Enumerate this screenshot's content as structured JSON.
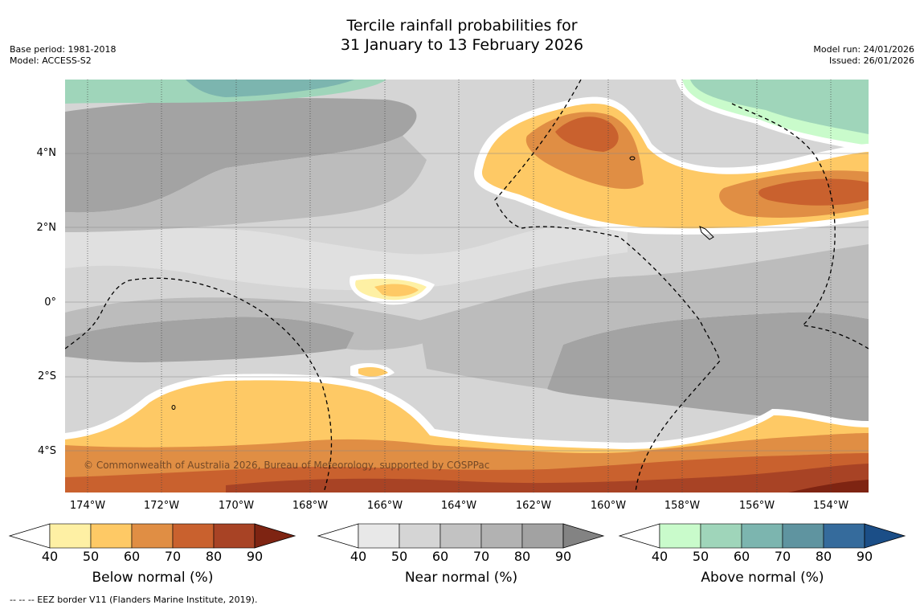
{
  "title": {
    "line1": "Tercile rainfall probabilities for",
    "line2": "31 January to 13 February 2026"
  },
  "meta": {
    "base_period": "Base period: 1981-2018",
    "model": "Model: ACCESS-S2",
    "model_run": "Model run: 24/01/2026",
    "issued": "Issued: 26/01/2026"
  },
  "axes": {
    "lat_labels": [
      "4°N",
      "2°N",
      "0°",
      "2°S",
      "4°S"
    ],
    "lon_labels": [
      "174°W",
      "172°W",
      "170°W",
      "168°W",
      "166°W",
      "164°W",
      "162°W",
      "160°W",
      "158°W",
      "156°W",
      "154°W"
    ]
  },
  "copyright": "© Commonwealth of Australia 2026, Bureau of Meteorology, supported by COSPPac",
  "colorbars": [
    {
      "title": "Below normal (%)",
      "ticks": [
        "40",
        "50",
        "60",
        "70",
        "80",
        "90"
      ],
      "colors": [
        "#fef0a4",
        "#fec965",
        "#e08e44",
        "#c9612e",
        "#a84325",
        "#7e2412"
      ]
    },
    {
      "title": "Near normal (%)",
      "ticks": [
        "40",
        "50",
        "60",
        "70",
        "80",
        "90"
      ],
      "colors": [
        "#e8e8e8",
        "#d5d5d5",
        "#c2c2c2",
        "#b2b2b2",
        "#a2a2a2",
        "#838383"
      ]
    },
    {
      "title": "Above normal (%)",
      "ticks": [
        "40",
        "50",
        "60",
        "70",
        "80",
        "90"
      ],
      "colors": [
        "#c9fbcb",
        "#9fd5ba",
        "#7cb5af",
        "#5f94a0",
        "#356b9c",
        "#1b4e87"
      ]
    }
  ],
  "footnote": "--  --  -- EEZ border V11 (Flanders Marine Institute, 2019)."
}
